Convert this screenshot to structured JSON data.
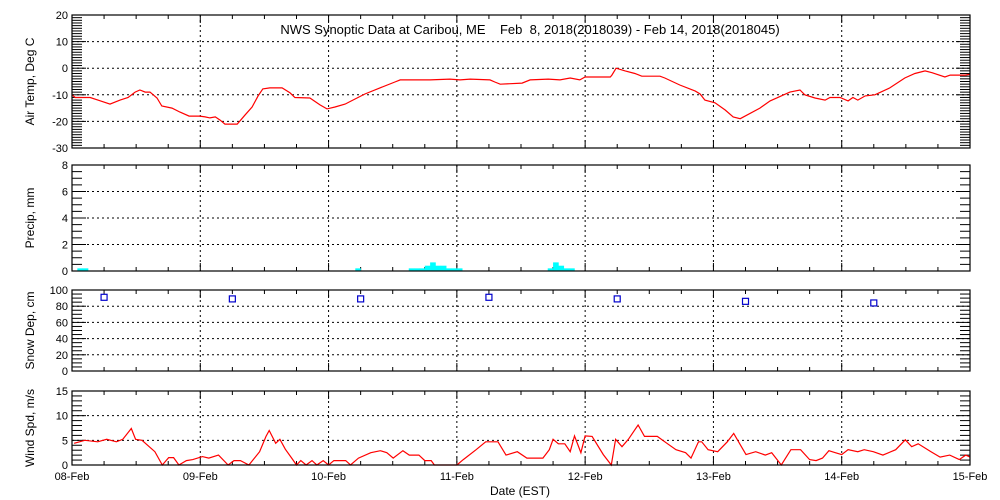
{
  "chart_data": [
    {
      "type": "line",
      "title": "NWS Synoptic Data at Caribou, ME    Feb  8, 2018(2018039) - Feb 14, 2018(2018045)",
      "ylabel": "Air Temp, Deg C",
      "ylim": [
        -30,
        20
      ],
      "yticks": [
        -30,
        -20,
        -10,
        0,
        10,
        20
      ],
      "ytick_labels": [
        "-30",
        "-20",
        "-10",
        "0",
        "10",
        "20"
      ],
      "minor_step": 1,
      "xunit": "hours since 08-Feb 00:00 EST",
      "color": "#ff0000",
      "grid": true,
      "x": [
        0,
        0.6,
        3.4,
        5.2,
        7.1,
        9,
        10.5,
        11.8,
        12.7,
        13.7,
        14.6,
        15.9,
        16.8,
        18.7,
        20.2,
        21.9,
        23.9,
        24.9,
        25.8,
        26.8,
        27.7,
        28.6,
        30.9,
        32.4,
        33.7,
        34.8,
        35.7,
        37,
        39.3,
        40.8,
        41.7,
        44.5,
        46.4,
        47.7,
        49.2,
        51.1,
        52.9,
        54.8,
        57.6,
        60.4,
        61.4,
        67,
        70.7,
        72.6,
        74.5,
        78.2,
        79.1,
        80.1,
        84.2,
        85.7,
        89.1,
        91.3,
        93.2,
        95,
        96,
        100.7,
        101,
        101.8,
        103.5,
        105.3,
        106.6,
        110,
        110.9,
        113.7,
        116.6,
        117.5,
        118.4,
        120.3,
        122.2,
        123.7,
        125,
        128.7,
        130.6,
        134.3,
        136.2,
        137.1,
        139,
        140.9,
        141.8,
        143.7,
        145.2,
        146.1,
        147,
        148.4,
        150.2,
        153,
        155.8,
        157.7,
        159.6,
        160.9,
        163.3,
        164.3,
        167.1,
        168
      ],
      "y": [
        -10,
        -11,
        -11,
        -12.2,
        -13.5,
        -12,
        -11,
        -9,
        -8.2,
        -9,
        -9,
        -11.2,
        -14.2,
        -15,
        -16.5,
        -18,
        -18,
        -18.3,
        -18.7,
        -18.3,
        -19.5,
        -21,
        -21,
        -17.5,
        -14.6,
        -10.5,
        -7.8,
        -7.4,
        -7.4,
        -9.3,
        -11,
        -11.2,
        -13.8,
        -15.3,
        -14.6,
        -13.5,
        -11.6,
        -9.7,
        -7.4,
        -5.2,
        -4.4,
        -4.4,
        -4.1,
        -4.4,
        -4.1,
        -4.4,
        -5.2,
        -6,
        -5.6,
        -4.4,
        -4.1,
        -4.4,
        -3.7,
        -4.4,
        -3.3,
        -3.3,
        -2.6,
        0,
        -1,
        -2,
        -3,
        -3,
        -3.7,
        -6.3,
        -8.6,
        -9.7,
        -12,
        -13,
        -15.7,
        -18.3,
        -19,
        -15,
        -12.3,
        -9,
        -8.2,
        -10,
        -11.2,
        -12,
        -11,
        -11,
        -12.3,
        -11,
        -12,
        -10.4,
        -10,
        -7.4,
        -3.7,
        -2,
        -1,
        -1.7,
        -3.3,
        -2.6,
        -2.6,
        -2.3
      ]
    },
    {
      "type": "bar",
      "ylabel": "Precip, mm",
      "ylim": [
        0,
        8
      ],
      "yticks": [
        0,
        2,
        4,
        6,
        8
      ],
      "ytick_labels": [
        "0",
        "2",
        "4",
        "6",
        "8"
      ],
      "minor_step": 0.5,
      "xunit": "hour index since 08-Feb 00:00 EST",
      "color": "#00ffff",
      "grid": true,
      "x": [
        1,
        2,
        53,
        63,
        64,
        65,
        66,
        67,
        68,
        69,
        70,
        71,
        72,
        89,
        90,
        91,
        92,
        93
      ],
      "values": [
        0.2,
        0.2,
        0.2,
        0.2,
        0.2,
        0.2,
        0.4,
        0.65,
        0.4,
        0.4,
        0.2,
        0.2,
        0.2,
        0.2,
        0.65,
        0.4,
        0.2,
        0.2
      ]
    },
    {
      "type": "scatter",
      "ylabel": "Snow Dep, cm",
      "ylim": [
        0,
        100
      ],
      "yticks": [
        0,
        20,
        40,
        60,
        80,
        100
      ],
      "ytick_labels": [
        "0",
        "20",
        "40",
        "60",
        "80",
        "100"
      ],
      "minor_step": 5,
      "xunit": "hours since 08-Feb 00:00 EST",
      "color": "#0000cc",
      "grid": true,
      "x": [
        6,
        30,
        54,
        78,
        102,
        126,
        150
      ],
      "y": [
        91,
        89,
        89,
        91,
        89,
        86,
        84
      ]
    },
    {
      "type": "line",
      "ylabel": "Wind Spd, m/s",
      "xlabel": "Date (EST)",
      "ylim": [
        0,
        15
      ],
      "yticks": [
        0,
        5,
        10,
        15
      ],
      "ytick_labels": [
        "0",
        "5",
        "10",
        "15"
      ],
      "minor_step": 1,
      "xunit": "hours since 08-Feb 00:00 EST",
      "color": "#ff0000",
      "grid": true,
      "x": [
        0.4,
        2.4,
        4.8,
        6.5,
        8.3,
        9.5,
        11.1,
        11.9,
        13.1,
        15.5,
        16.9,
        18.1,
        19,
        20,
        21.4,
        22.6,
        24.4,
        25.6,
        27.4,
        29.2,
        30.3,
        31.5,
        33.1,
        35.1,
        36.3,
        36.9,
        38.1,
        38.9,
        39.9,
        41.1,
        42,
        42.8,
        43.8,
        44.9,
        45.8,
        47,
        48,
        49,
        51.2,
        52.1,
        53.6,
        55.9,
        57.7,
        58.9,
        60.1,
        61.9,
        63.1,
        64.9,
        66,
        67.2,
        67.8,
        72,
        73.2,
        75.6,
        77.4,
        79.7,
        81.2,
        83.3,
        85.1,
        88.1,
        89.3,
        90,
        91,
        92.2,
        93.2,
        94,
        95.2,
        96,
        97.3,
        99.4,
        100.9,
        101.7,
        102.9,
        104.1,
        105.9,
        107.1,
        109.5,
        111.3,
        113,
        114.8,
        115.8,
        117.2,
        117.8,
        119,
        120.8,
        122.6,
        123.8,
        126.1,
        127.9,
        129.7,
        130.9,
        132.7,
        134.5,
        136.3,
        138,
        139.2,
        140.4,
        141.6,
        142.8,
        144,
        145.2,
        147,
        148.2,
        149.9,
        151.7,
        154.1,
        155.9,
        157.1,
        158.3,
        160.7,
        162.4,
        164.2,
        166,
        167.2,
        168
      ],
      "y": [
        4.4,
        5,
        4.7,
        5.2,
        4.7,
        5.2,
        7.4,
        5.2,
        5,
        2.7,
        0,
        1.5,
        1.5,
        0,
        0.9,
        1.1,
        1.7,
        1.4,
        2,
        0,
        0.9,
        0.9,
        0,
        2.7,
        5.8,
        7,
        4.4,
        5.2,
        3.2,
        1.4,
        0,
        0.9,
        0,
        0.9,
        0,
        0.9,
        0,
        0.9,
        0.9,
        0,
        1.4,
        2.5,
        2.9,
        2.5,
        1.4,
        2.9,
        2,
        2,
        0.9,
        0.9,
        0,
        0,
        1.1,
        3.1,
        4.7,
        4.7,
        2,
        2.7,
        1.4,
        1.4,
        3.1,
        5.2,
        4.3,
        4.3,
        2.7,
        5.9,
        2.5,
        5.9,
        5.8,
        2.1,
        0,
        5.2,
        3.7,
        5.2,
        8.1,
        5.8,
        5.8,
        4.4,
        3.1,
        2.5,
        1.4,
        4.7,
        4.7,
        3.1,
        2.7,
        4.7,
        6.4,
        2.1,
        2.7,
        2,
        2.5,
        0,
        3.1,
        3.1,
        1.1,
        0.9,
        1.4,
        2.9,
        2.5,
        2.1,
        3.1,
        2.7,
        3.1,
        2.7,
        2,
        3.1,
        5.1,
        3.7,
        4.3,
        2.7,
        1.6,
        2,
        1.1,
        2,
        1.6
      ]
    }
  ],
  "x_axis": {
    "range_hours": [
      0,
      168
    ],
    "tick_labels": [
      "08-Feb",
      "09-Feb",
      "10-Feb",
      "11-Feb",
      "12-Feb",
      "13-Feb",
      "14-Feb",
      "15-Feb"
    ],
    "minor_step_hours": 6
  }
}
